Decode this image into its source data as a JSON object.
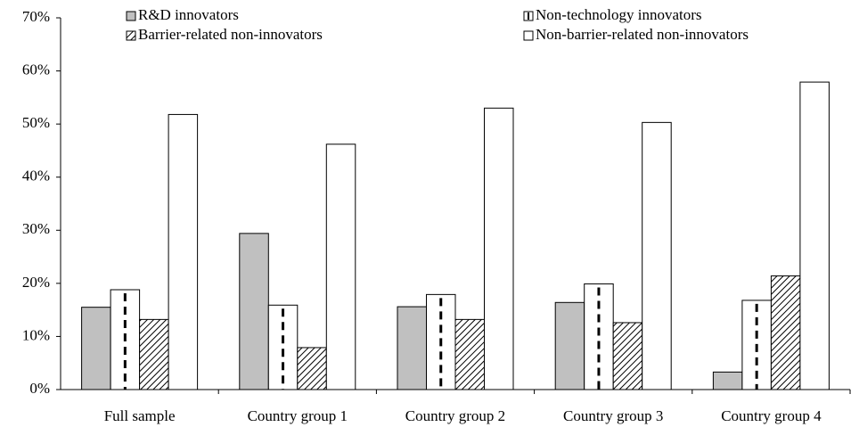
{
  "chart_data": {
    "type": "bar",
    "categories": [
      "Full sample",
      "Country group 1",
      "Country group 2",
      "Country group 3",
      "Country group 4"
    ],
    "series": [
      {
        "name": "R&D innovators",
        "color": "#c0c0c0",
        "pattern": "solid",
        "values": [
          15.5,
          29.4,
          15.6,
          16.4,
          3.3
        ]
      },
      {
        "name": "Non-technology innovators",
        "color": "#ffffff",
        "pattern": "dashes",
        "values": [
          18.8,
          15.9,
          17.9,
          19.9,
          16.8
        ]
      },
      {
        "name": "Barrier-related non-innovators",
        "color": "#ffffff",
        "pattern": "hatch",
        "values": [
          13.2,
          7.9,
          13.2,
          12.6,
          21.4
        ]
      },
      {
        "name": "Non-barrier-related non-innovators",
        "color": "#ffffff",
        "pattern": "none",
        "values": [
          51.8,
          46.2,
          53.0,
          50.3,
          57.9
        ]
      }
    ],
    "ylim": [
      0,
      70
    ],
    "yticks": [
      {
        "value": 0,
        "label": "0%"
      },
      {
        "value": 10,
        "label": "10%"
      },
      {
        "value": 20,
        "label": "20%"
      },
      {
        "value": 30,
        "label": "30%"
      },
      {
        "value": 40,
        "label": "40%"
      },
      {
        "value": 50,
        "label": "50%"
      },
      {
        "value": 60,
        "label": "60%"
      },
      {
        "value": 70,
        "label": "70%"
      }
    ],
    "legend": "top",
    "grid": false
  }
}
